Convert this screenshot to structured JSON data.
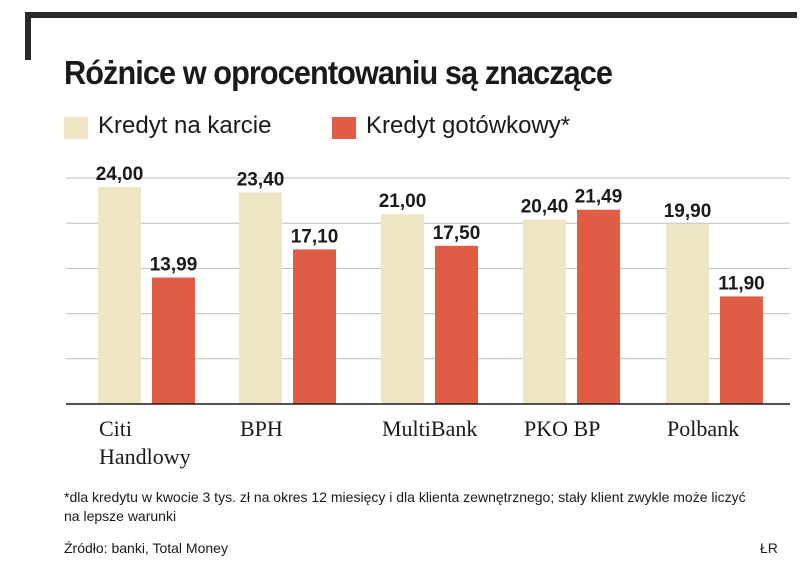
{
  "chart_data": {
    "type": "bar",
    "title": "Różnice w oprocentowaniu są znaczące",
    "categories": [
      [
        "Citi",
        "Handlowy"
      ],
      [
        "BPH"
      ],
      [
        "MultiBank"
      ],
      [
        "PKO BP"
      ],
      [
        "Polbank"
      ]
    ],
    "series": [
      {
        "name": "Kredyt na karcie",
        "color": "#efe4c4",
        "values": [
          24.0,
          23.4,
          21.0,
          20.4,
          19.9
        ],
        "labels": [
          "24,00",
          "23,40",
          "21,00",
          "20,40",
          "19,90"
        ]
      },
      {
        "name": "Kredyt gotówkowy*",
        "color": "#e05d45",
        "values": [
          13.99,
          17.1,
          17.5,
          21.49,
          11.9
        ],
        "labels": [
          "13,99",
          "17,10",
          "17,50",
          "21,49",
          "11,90"
        ]
      }
    ],
    "ylim": [
      0,
      25
    ],
    "grid": true,
    "legend_position": "top-left"
  },
  "footnote": "*dla kredytu w kwocie 3 tys. zł  na okres 12 miesięcy i dla klienta zewnętrznego; stały klient zwykle może liczyć na lepsze warunki",
  "source": "Źródło: banki, Total Money",
  "author": "ŁR"
}
